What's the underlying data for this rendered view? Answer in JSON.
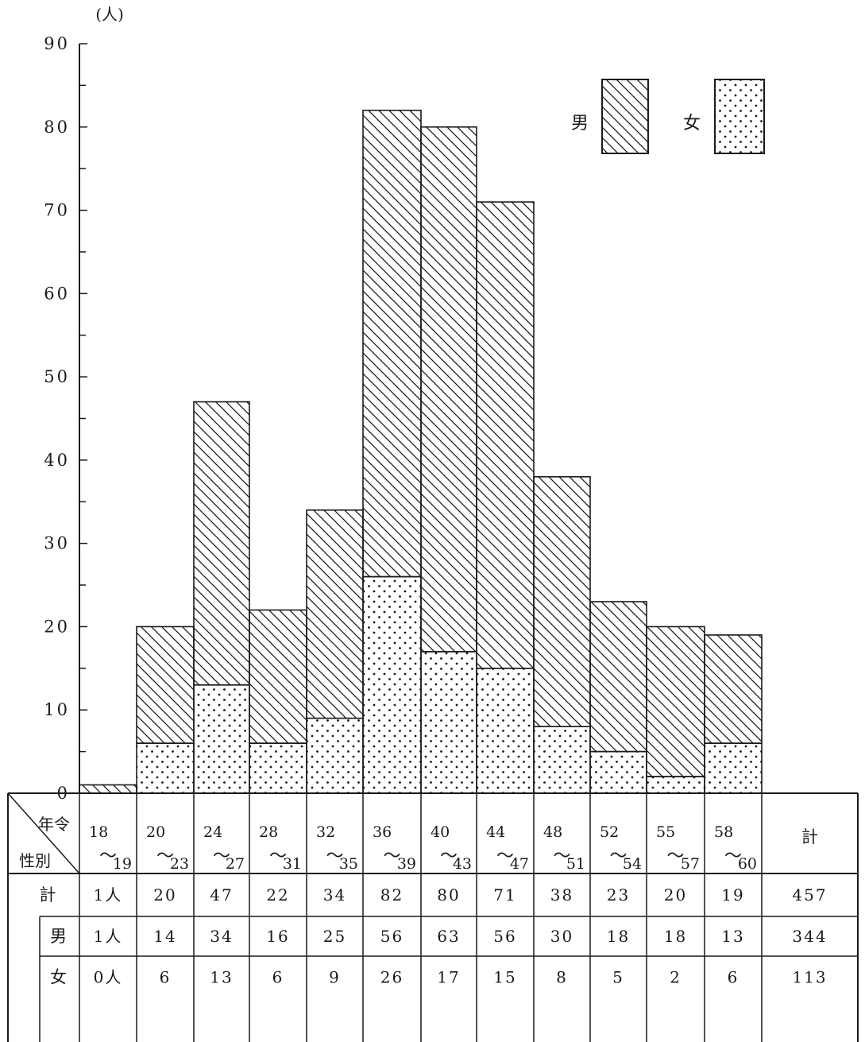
{
  "chart_data": {
    "type": "bar",
    "stacked": true,
    "y_unit": "(人)",
    "ylim": [
      0,
      90
    ],
    "yticks": [
      "0",
      "10",
      "20",
      "30",
      "40",
      "50",
      "60",
      "70",
      "80",
      "90"
    ],
    "grid": false,
    "legend_position": "top-right",
    "series": [
      {
        "name": "女",
        "pattern": "dots",
        "values": [
          0,
          6,
          13,
          6,
          9,
          26,
          17,
          15,
          8,
          5,
          2,
          6
        ]
      },
      {
        "name": "男",
        "pattern": "hatch",
        "values": [
          1,
          14,
          34,
          16,
          25,
          56,
          63,
          56,
          30,
          18,
          18,
          13
        ]
      }
    ],
    "categories": [
      {
        "from": "18",
        "to": "19"
      },
      {
        "from": "20",
        "to": "23"
      },
      {
        "from": "24",
        "to": "27"
      },
      {
        "from": "28",
        "to": "31"
      },
      {
        "from": "32",
        "to": "35"
      },
      {
        "from": "36",
        "to": "39"
      },
      {
        "from": "40",
        "to": "43"
      },
      {
        "from": "44",
        "to": "47"
      },
      {
        "from": "48",
        "to": "51"
      },
      {
        "from": "52",
        "to": "54"
      },
      {
        "from": "55",
        "to": "57"
      },
      {
        "from": "58",
        "to": "60"
      }
    ],
    "range_mark": "～",
    "table": {
      "header_top": "年令",
      "header_bottom": "性別",
      "total_header": "計",
      "rows": [
        {
          "label": "計",
          "cells": [
            "1人",
            "20",
            "47",
            "22",
            "34",
            "82",
            "80",
            "71",
            "38",
            "23",
            "20",
            "19",
            "457"
          ]
        },
        {
          "label": "男",
          "cells": [
            "1人",
            "14",
            "34",
            "16",
            "25",
            "56",
            "63",
            "56",
            "30",
            "18",
            "18",
            "13",
            "344"
          ]
        },
        {
          "label": "女",
          "cells": [
            "0人",
            "6",
            "13",
            "6",
            "9",
            "26",
            "17",
            "15",
            "8",
            "5",
            "2",
            "6",
            "113"
          ]
        }
      ]
    }
  }
}
